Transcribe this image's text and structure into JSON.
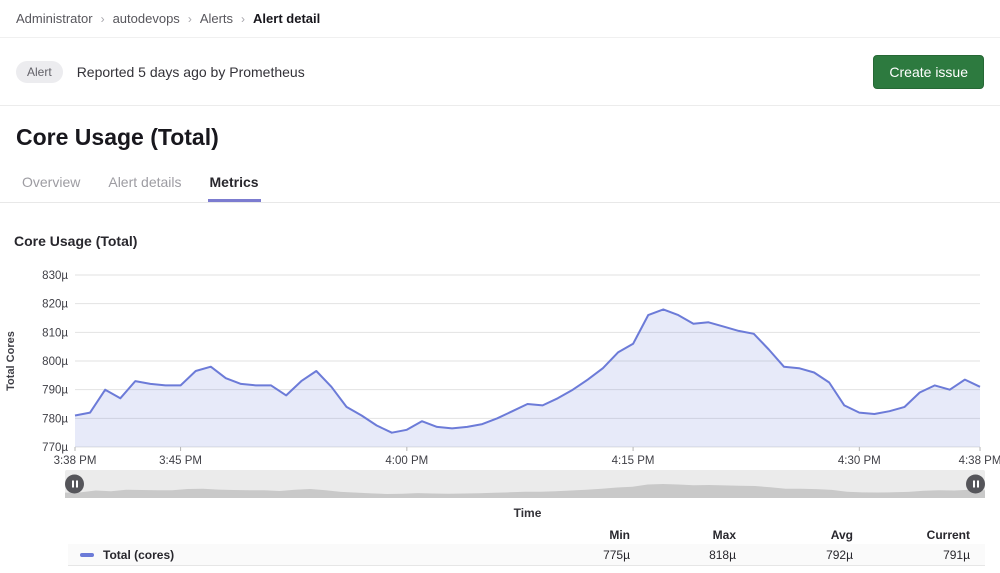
{
  "breadcrumb": {
    "items": [
      "Administrator",
      "autodevops",
      "Alerts",
      "Alert detail"
    ],
    "separator": "›"
  },
  "alert_bar": {
    "badge": "Alert",
    "reported_text": "Reported 5 days ago by Prometheus",
    "create_issue_label": "Create issue"
  },
  "page": {
    "title": "Core Usage (Total)"
  },
  "tabs": [
    {
      "label": "Overview",
      "active": false
    },
    {
      "label": "Alert details",
      "active": false
    },
    {
      "label": "Metrics",
      "active": true
    }
  ],
  "chart_section": {
    "heading": "Core Usage (Total)"
  },
  "chart_data": {
    "type": "area",
    "title": "Core Usage (Total)",
    "xlabel": "Time",
    "ylabel": "Total Cores",
    "unit": "µ",
    "ylim": [
      770,
      830
    ],
    "y_tick_values": [
      770,
      780,
      790,
      800,
      810,
      820,
      830
    ],
    "y_tick_labels": [
      "770µ",
      "780µ",
      "790µ",
      "800µ",
      "810µ",
      "820µ",
      "830µ"
    ],
    "x_tick_minutes": [
      0,
      7,
      22,
      37,
      52,
      60
    ],
    "x_tick_labels": [
      "3:38 PM",
      "3:45 PM",
      "4:00 PM",
      "4:15 PM",
      "4:30 PM",
      "4:38 PM"
    ],
    "x_range_minutes": 60,
    "grid": true,
    "legend_position": "bottom-table",
    "series": [
      {
        "name": "Total (cores)",
        "color": "#6c7bd8",
        "values": [
          781,
          782,
          790,
          787,
          793,
          792,
          791.5,
          791.5,
          796.5,
          798,
          794,
          792,
          791.5,
          791.5,
          788,
          793,
          796.5,
          791,
          784,
          781,
          777.5,
          775,
          776,
          779,
          777,
          776.5,
          777,
          778,
          780,
          782.5,
          785,
          784.5,
          787,
          790,
          793.5,
          797.5,
          803,
          806,
          816,
          818,
          816,
          813,
          813.5,
          812,
          810.5,
          809.5,
          804,
          798,
          797.5,
          796,
          792.5,
          784.5,
          782,
          781.5,
          782.5,
          784,
          789,
          791.5,
          790,
          793.5,
          791
        ]
      }
    ]
  },
  "legend_table": {
    "headers": [
      "Min",
      "Max",
      "Avg",
      "Current"
    ],
    "rows": [
      {
        "label": "Total (cores)",
        "min": "775µ",
        "max": "818µ",
        "avg": "792µ",
        "current": "791µ"
      }
    ]
  },
  "colors": {
    "accent_line": "#6c7bd8",
    "tab_underline": "#7c7cd0",
    "create_issue_button": "#2d7a3f",
    "grid": "#e2e2e2",
    "axis_text": "#3f3f46",
    "brush_track": "#ebebeb",
    "brush_silhouette": "#c9c9c9",
    "badge_bg": "#ececef"
  }
}
